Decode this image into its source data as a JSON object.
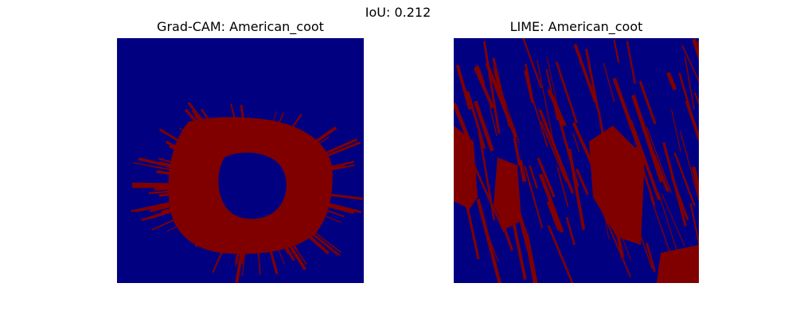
{
  "figure": {
    "suptitle": "IoU: 0.212",
    "colors": {
      "background": "#000080",
      "foreground": "#800000"
    }
  },
  "panels": [
    {
      "title": "Grad-CAM: American_coot",
      "mask_icon": "binary-mask-ring-pattern"
    },
    {
      "title": "LIME: American_coot",
      "mask_icon": "binary-mask-streak-pattern"
    }
  ]
}
